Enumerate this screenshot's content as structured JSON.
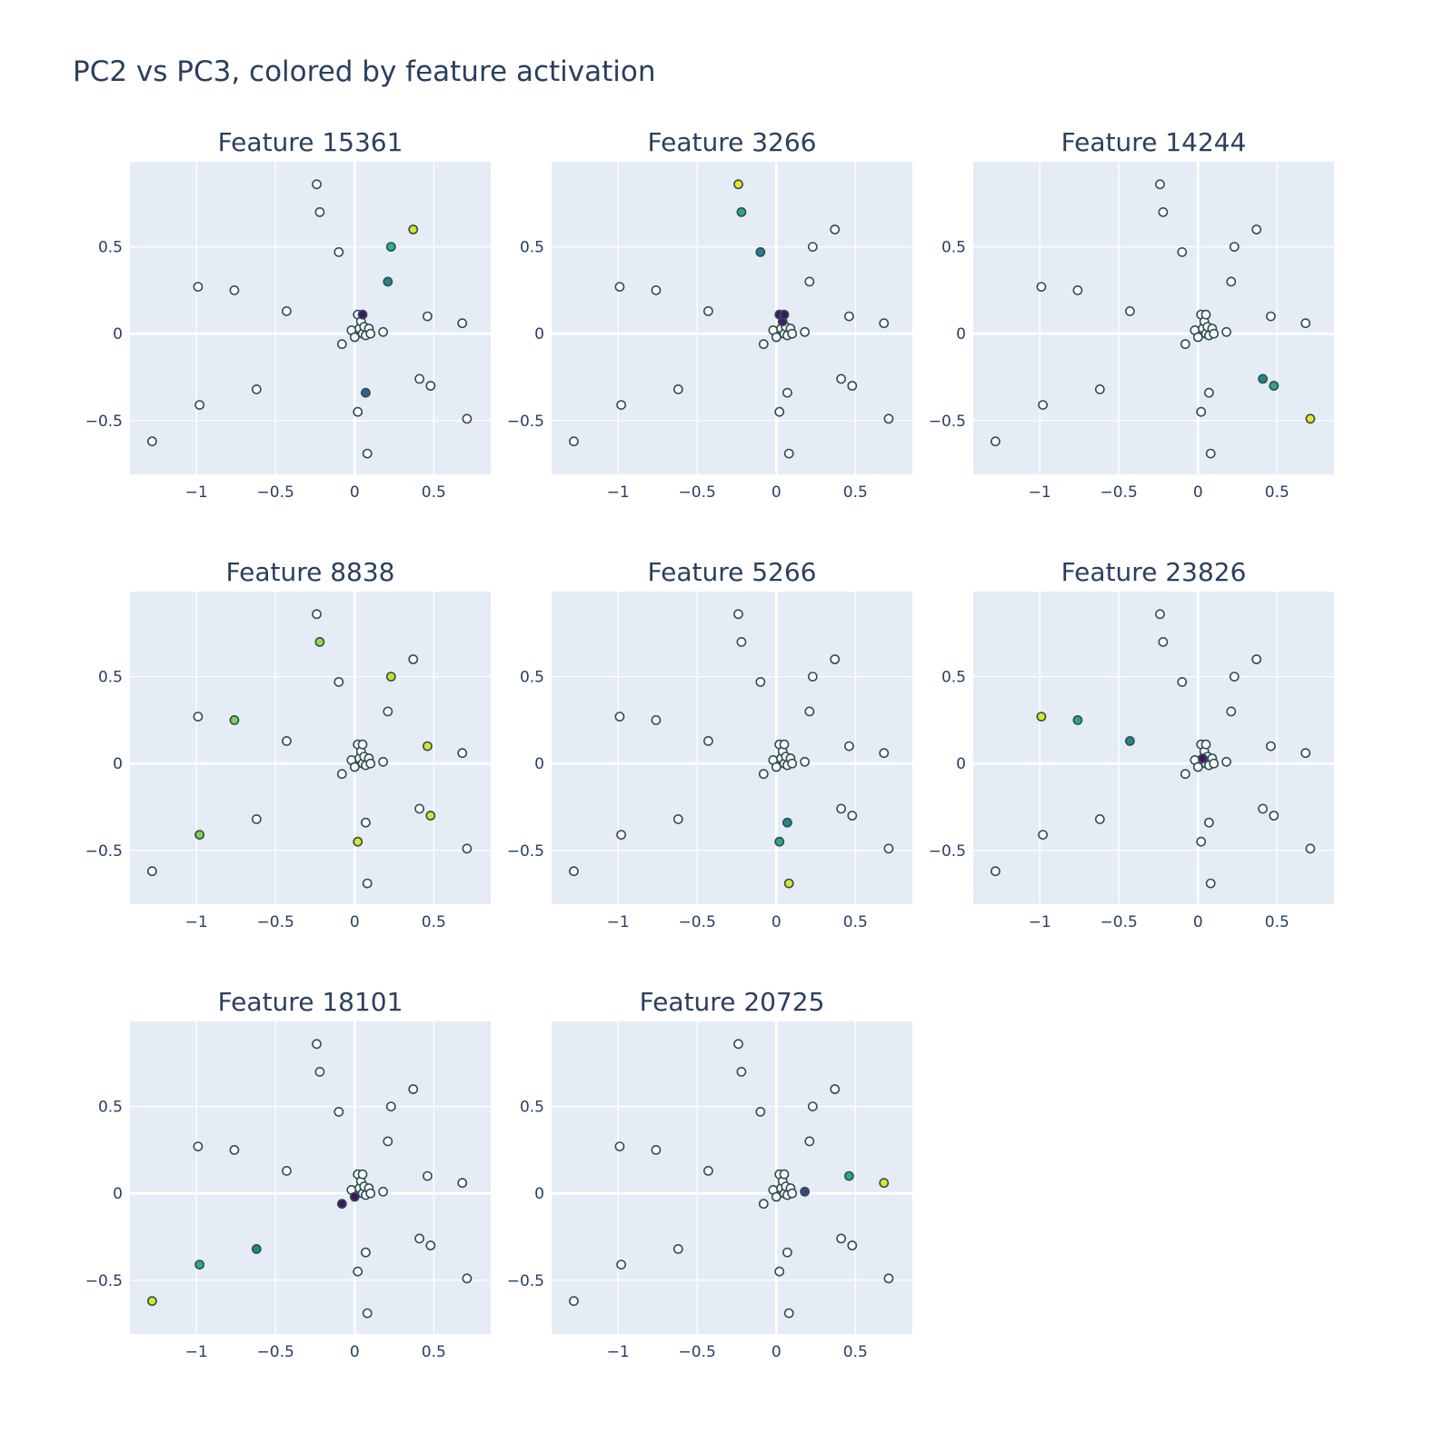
{
  "figure": {
    "title": "PC2 vs PC3, colored by feature activation"
  },
  "chart_data": {
    "type": "scatter",
    "layout": "grid 3x3",
    "xlabel": "",
    "ylabel": "",
    "xlim": [
      -1.42,
      0.86
    ],
    "ylim": [
      -0.81,
      0.99
    ],
    "x_ticks": [
      -1,
      -0.5,
      0,
      0.5
    ],
    "x_tick_labels": [
      "−1",
      "−0.5",
      "0",
      "0.5"
    ],
    "y_ticks": [
      -0.5,
      0,
      0.5
    ],
    "y_tick_labels": [
      "−0.5",
      "0",
      "0.5"
    ],
    "grid": true,
    "colorscale": "viridis",
    "inactive_color": "#ffffff",
    "marker_outline_color": "#2f4f4f",
    "points": [
      {
        "x": -1.28,
        "y": -0.62
      },
      {
        "x": -0.99,
        "y": 0.27
      },
      {
        "x": -0.98,
        "y": -0.41
      },
      {
        "x": -0.76,
        "y": 0.25
      },
      {
        "x": -0.62,
        "y": -0.32
      },
      {
        "x": -0.43,
        "y": 0.13
      },
      {
        "x": -0.24,
        "y": 0.86
      },
      {
        "x": -0.22,
        "y": 0.7
      },
      {
        "x": -0.1,
        "y": 0.47
      },
      {
        "x": -0.08,
        "y": -0.06
      },
      {
        "x": -0.02,
        "y": 0.02
      },
      {
        "x": 0.0,
        "y": -0.02
      },
      {
        "x": 0.02,
        "y": 0.11
      },
      {
        "x": 0.02,
        "y": -0.45
      },
      {
        "x": 0.03,
        "y": 0.03
      },
      {
        "x": 0.04,
        "y": 0.07
      },
      {
        "x": 0.05,
        "y": 0.11
      },
      {
        "x": 0.05,
        "y": 0.0
      },
      {
        "x": 0.06,
        "y": 0.04
      },
      {
        "x": 0.07,
        "y": -0.01
      },
      {
        "x": 0.07,
        "y": -0.34
      },
      {
        "x": 0.08,
        "y": -0.69
      },
      {
        "x": 0.09,
        "y": 0.03
      },
      {
        "x": 0.1,
        "y": 0.0
      },
      {
        "x": 0.18,
        "y": 0.01
      },
      {
        "x": 0.21,
        "y": 0.3
      },
      {
        "x": 0.23,
        "y": 0.5
      },
      {
        "x": 0.37,
        "y": 0.6
      },
      {
        "x": 0.41,
        "y": -0.26
      },
      {
        "x": 0.46,
        "y": 0.1
      },
      {
        "x": 0.48,
        "y": -0.3
      },
      {
        "x": 0.68,
        "y": 0.06
      },
      {
        "x": 0.71,
        "y": -0.49
      }
    ],
    "series": [
      {
        "name": "Feature 15361",
        "active": [
          {
            "i": 27,
            "v": 0.95
          },
          {
            "i": 26,
            "v": 0.65
          },
          {
            "i": 25,
            "v": 0.45
          },
          {
            "i": 16,
            "v": 0.05
          },
          {
            "i": 20,
            "v": 0.3
          }
        ]
      },
      {
        "name": "Feature 3266",
        "active": [
          {
            "i": 6,
            "v": 0.97
          },
          {
            "i": 7,
            "v": 0.6
          },
          {
            "i": 8,
            "v": 0.42
          },
          {
            "i": 12,
            "v": 0.05
          },
          {
            "i": 16,
            "v": 0.05
          },
          {
            "i": 15,
            "v": 0.08
          }
        ]
      },
      {
        "name": "Feature 14244",
        "active": [
          {
            "i": 32,
            "v": 0.97
          },
          {
            "i": 30,
            "v": 0.6
          },
          {
            "i": 28,
            "v": 0.45
          }
        ]
      },
      {
        "name": "Feature 8838",
        "active": [
          {
            "i": 7,
            "v": 0.85
          },
          {
            "i": 26,
            "v": 0.92
          },
          {
            "i": 3,
            "v": 0.8
          },
          {
            "i": 29,
            "v": 0.95
          },
          {
            "i": 2,
            "v": 0.8
          },
          {
            "i": 30,
            "v": 0.95
          },
          {
            "i": 13,
            "v": 0.95
          }
        ]
      },
      {
        "name": "Feature 5266",
        "active": [
          {
            "i": 21,
            "v": 0.95
          },
          {
            "i": 13,
            "v": 0.62
          },
          {
            "i": 20,
            "v": 0.45
          }
        ]
      },
      {
        "name": "Feature 23826",
        "active": [
          {
            "i": 1,
            "v": 0.95
          },
          {
            "i": 3,
            "v": 0.6
          },
          {
            "i": 5,
            "v": 0.45
          },
          {
            "i": 14,
            "v": 0.05
          }
        ]
      },
      {
        "name": "Feature 18101",
        "active": [
          {
            "i": 0,
            "v": 0.95
          },
          {
            "i": 2,
            "v": 0.62
          },
          {
            "i": 4,
            "v": 0.45
          },
          {
            "i": 9,
            "v": 0.05
          },
          {
            "i": 11,
            "v": 0.05
          }
        ]
      },
      {
        "name": "Feature 20725",
        "active": [
          {
            "i": 31,
            "v": 0.95
          },
          {
            "i": 29,
            "v": 0.6
          },
          {
            "i": 24,
            "v": 0.2
          }
        ]
      }
    ]
  }
}
